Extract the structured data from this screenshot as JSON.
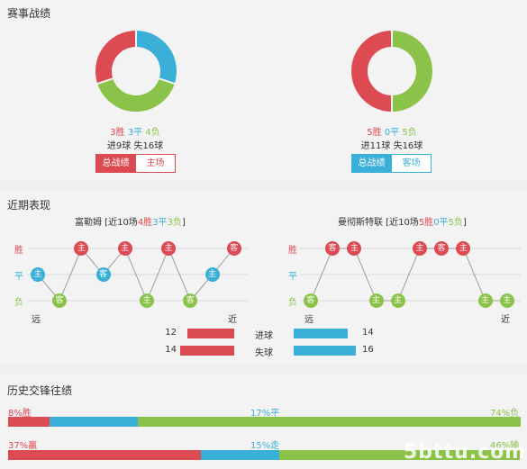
{
  "colors": {
    "red": "#dc4a52",
    "blue": "#3aafd8",
    "green": "#8bc34a",
    "grayline": "#d9d9d9"
  },
  "record": {
    "title": "赛事战绩",
    "left": {
      "win": "3胜",
      "draw": "3平",
      "loss": "4负",
      "goals": "进9球 失16球",
      "tab_active": "总战绩",
      "tab_other": "主场",
      "donut": {
        "win": 3,
        "draw": 3,
        "loss": 4
      }
    },
    "right": {
      "win": "5胜",
      "draw": "0平",
      "loss": "5负",
      "goals": "进11球 失16球",
      "tab_active": "总战绩",
      "tab_other": "客场",
      "donut": {
        "win": 5,
        "draw": 0,
        "loss": 5
      }
    }
  },
  "recent": {
    "title": "近期表现",
    "left": {
      "team": "富勒姆",
      "prefix": " [近10场",
      "win": "4胜",
      "draw": "3平",
      "loss": "3负",
      "suffix": "]",
      "axis": [
        "胜",
        "平",
        "负"
      ],
      "far": "远",
      "near": "近",
      "games": [
        {
          "r": "d",
          "t": "主"
        },
        {
          "r": "l",
          "t": "客"
        },
        {
          "r": "w",
          "t": "主"
        },
        {
          "r": "d",
          "t": "客"
        },
        {
          "r": "w",
          "t": "主"
        },
        {
          "r": "l",
          "t": "主"
        },
        {
          "r": "w",
          "t": "主"
        },
        {
          "r": "l",
          "t": "客"
        },
        {
          "r": "d",
          "t": "主"
        },
        {
          "r": "w",
          "t": "客"
        }
      ]
    },
    "right": {
      "team": "曼彻斯特联",
      "prefix": " [近10场",
      "win": "5胜",
      "draw": "0平",
      "loss": "5负",
      "suffix": "]",
      "axis": [
        "胜",
        "平",
        "负"
      ],
      "far": "远",
      "near": "近",
      "games": [
        {
          "r": "l",
          "t": "客"
        },
        {
          "r": "w",
          "t": "客"
        },
        {
          "r": "w",
          "t": "主"
        },
        {
          "r": "l",
          "t": "主"
        },
        {
          "r": "l",
          "t": "主"
        },
        {
          "r": "w",
          "t": "主"
        },
        {
          "r": "w",
          "t": "客"
        },
        {
          "r": "w",
          "t": "主"
        },
        {
          "r": "l",
          "t": "主"
        },
        {
          "r": "l",
          "t": "主"
        }
      ]
    },
    "compare": [
      {
        "label": "进球",
        "left": 12,
        "right": 14
      },
      {
        "label": "失球",
        "left": 14,
        "right": 16
      }
    ]
  },
  "history": {
    "title": "历史交锋往绩",
    "rows": [
      {
        "a_label": "8%胜",
        "b_label": "17%平",
        "c_label": "74%负",
        "a": 8,
        "b": 17,
        "c": 74
      },
      {
        "a_label": "37%赢",
        "b_label": "15%走",
        "c_label": "46%输",
        "a": 37,
        "b": 15,
        "c": 46
      }
    ]
  },
  "watermark": "5bttu.com"
}
